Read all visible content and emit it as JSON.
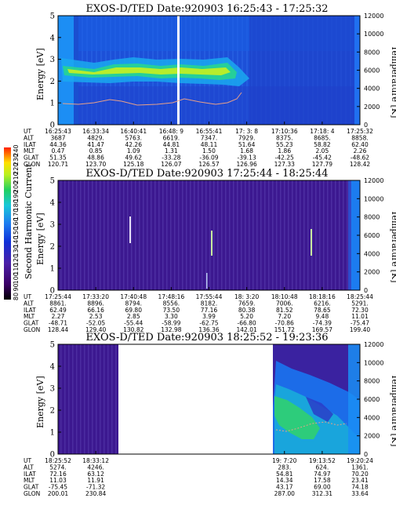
{
  "colorbar": {
    "label": "Second Harmonic Current",
    "ticks": [
      "240",
      "230",
      "220",
      "210",
      "200",
      "190",
      "180",
      "170",
      "160",
      "150",
      "140",
      "130",
      "120",
      "110",
      "100",
      "90",
      "80"
    ]
  },
  "chart_data": [
    {
      "type": "heatmap",
      "title": "EXOS-D/TED   Date:920903   16:25:43 - 17:25:32",
      "ylabel": "Energy [eV]",
      "ylabel_right": "Temperature [K]",
      "ylim": [
        0,
        5
      ],
      "ylim_right": [
        0,
        12000
      ],
      "yticks": [
        "0",
        "1",
        "2",
        "3",
        "4",
        "5"
      ],
      "yticks_right": [
        "0",
        "2000",
        "4000",
        "6000",
        "8000",
        "10000",
        "12000"
      ],
      "orbit_labels": [
        "UT",
        "ALT",
        "ILAT",
        "MLT",
        "GLAT",
        "GLON"
      ],
      "orbit_columns": [
        [
          "16:25:43",
          "3687",
          "44.36",
          "0.47",
          "51.35",
          "120.71"
        ],
        [
          "16:33:34",
          "4829.",
          "41.47",
          "0.85",
          "48.86",
          "123.70"
        ],
        [
          "16:40:41",
          "5763.",
          "42.26",
          "1.09",
          "49.62",
          "125.18"
        ],
        [
          "16:48: 9",
          "6619.",
          "44.81",
          "1.31",
          "-33.28",
          "126.07"
        ],
        [
          "16:55:41",
          "7347.",
          "48.11",
          "1.50",
          "-36.09",
          "126.57"
        ],
        [
          "17: 3: 8",
          "7929.",
          "51.64",
          "1.68",
          "-39.13",
          "126.96"
        ],
        [
          "17:10:36",
          "8375.",
          "55.23",
          "1.86",
          "-42.25",
          "127.33"
        ],
        [
          "17:18: 4",
          "8685.",
          "58.82",
          "2.05",
          "-45.42",
          "127.79"
        ],
        [
          "17:25:32",
          "8858.",
          "62.40",
          "2.26",
          "-48.62",
          "128.42"
        ]
      ]
    },
    {
      "type": "heatmap",
      "title": "EXOS-D/TED   Date:920903   17:25:44 - 18:25:44",
      "ylabel": "Energy [eV]",
      "ylabel_right": "Temperature [K]",
      "ylim": [
        0,
        5
      ],
      "ylim_right": [
        0,
        12000
      ],
      "yticks": [
        "0",
        "1",
        "2",
        "3",
        "4",
        "5"
      ],
      "yticks_right": [
        "0",
        "2000",
        "4000",
        "6000",
        "8000",
        "10000",
        "12000"
      ],
      "orbit_labels": [
        "UT",
        "ALT",
        "ILAT",
        "MLT",
        "GLAT",
        "GLON"
      ],
      "orbit_columns": [
        [
          "17:25:44",
          "8861.",
          "62.49",
          "2.27",
          "-48.71",
          "128.44"
        ],
        [
          "17:33:20",
          "8896.",
          "66.16",
          "2.53",
          "-52.05",
          "129.40"
        ],
        [
          "17:40:48",
          "8794.",
          "69.80",
          "2.85",
          "-55.44",
          "130.82"
        ],
        [
          "17:48:16",
          "8556.",
          "73.50",
          "3.30",
          "-58.99",
          "132.98"
        ],
        [
          "17:55:44",
          "8182.",
          "77.16",
          "3.99",
          "-62.75",
          "136.36"
        ],
        [
          "18: 3:20",
          "7659.",
          "80.38",
          "5.20",
          "-66.80",
          "142.01"
        ],
        [
          "18:10:48",
          "7006.",
          "81.52",
          "7.20",
          "-70.86",
          "151.72"
        ],
        [
          "18:18:16",
          "6216.",
          "78.65",
          "9.48",
          "-74.39",
          "169.57"
        ],
        [
          "18:25:44",
          "5291.",
          "72.30",
          "11.01",
          "-75.47",
          "199.40"
        ]
      ]
    },
    {
      "type": "heatmap",
      "title": "EXOS-D/TED   Date:920903   18:25:52 - 19:23:36",
      "ylabel": "Energy [eV]",
      "ylabel_right": "Temperature [K]",
      "ylim": [
        0,
        5
      ],
      "ylim_right": [
        0,
        12000
      ],
      "yticks": [
        "0",
        "1",
        "2",
        "3",
        "4",
        "5"
      ],
      "yticks_right": [
        "0",
        "2000",
        "4000",
        "6000",
        "8000",
        "10000",
        "12000"
      ],
      "orbit_labels": [
        "UT",
        "ALT",
        "ILAT",
        "MLT",
        "GLAT",
        "GLON"
      ],
      "orbit_columns": [
        [
          "18:25:52",
          "5274.",
          "72.16",
          "11.03",
          "-75.45",
          "200.01"
        ],
        [
          "18:33:12",
          "4246.",
          "63.12",
          "11.91",
          "-71.32",
          "230.84"
        ],
        [
          "",
          "",
          "",
          "",
          "",
          ""
        ],
        [
          "",
          "",
          "",
          "",
          "",
          ""
        ],
        [
          "",
          "",
          "",
          "",
          "",
          ""
        ],
        [
          "",
          "",
          "",
          "",
          "",
          ""
        ],
        [
          "19: 7:20",
          "283.",
          "54.81",
          "14.34",
          "43.17",
          "287.00"
        ],
        [
          "19:13:52",
          "624.",
          "74.97",
          "17.58",
          "69.00",
          "312.31"
        ],
        [
          "19:20:24",
          "1361.",
          "70.20",
          "23.41",
          "74.18",
          "33.64"
        ]
      ]
    }
  ]
}
